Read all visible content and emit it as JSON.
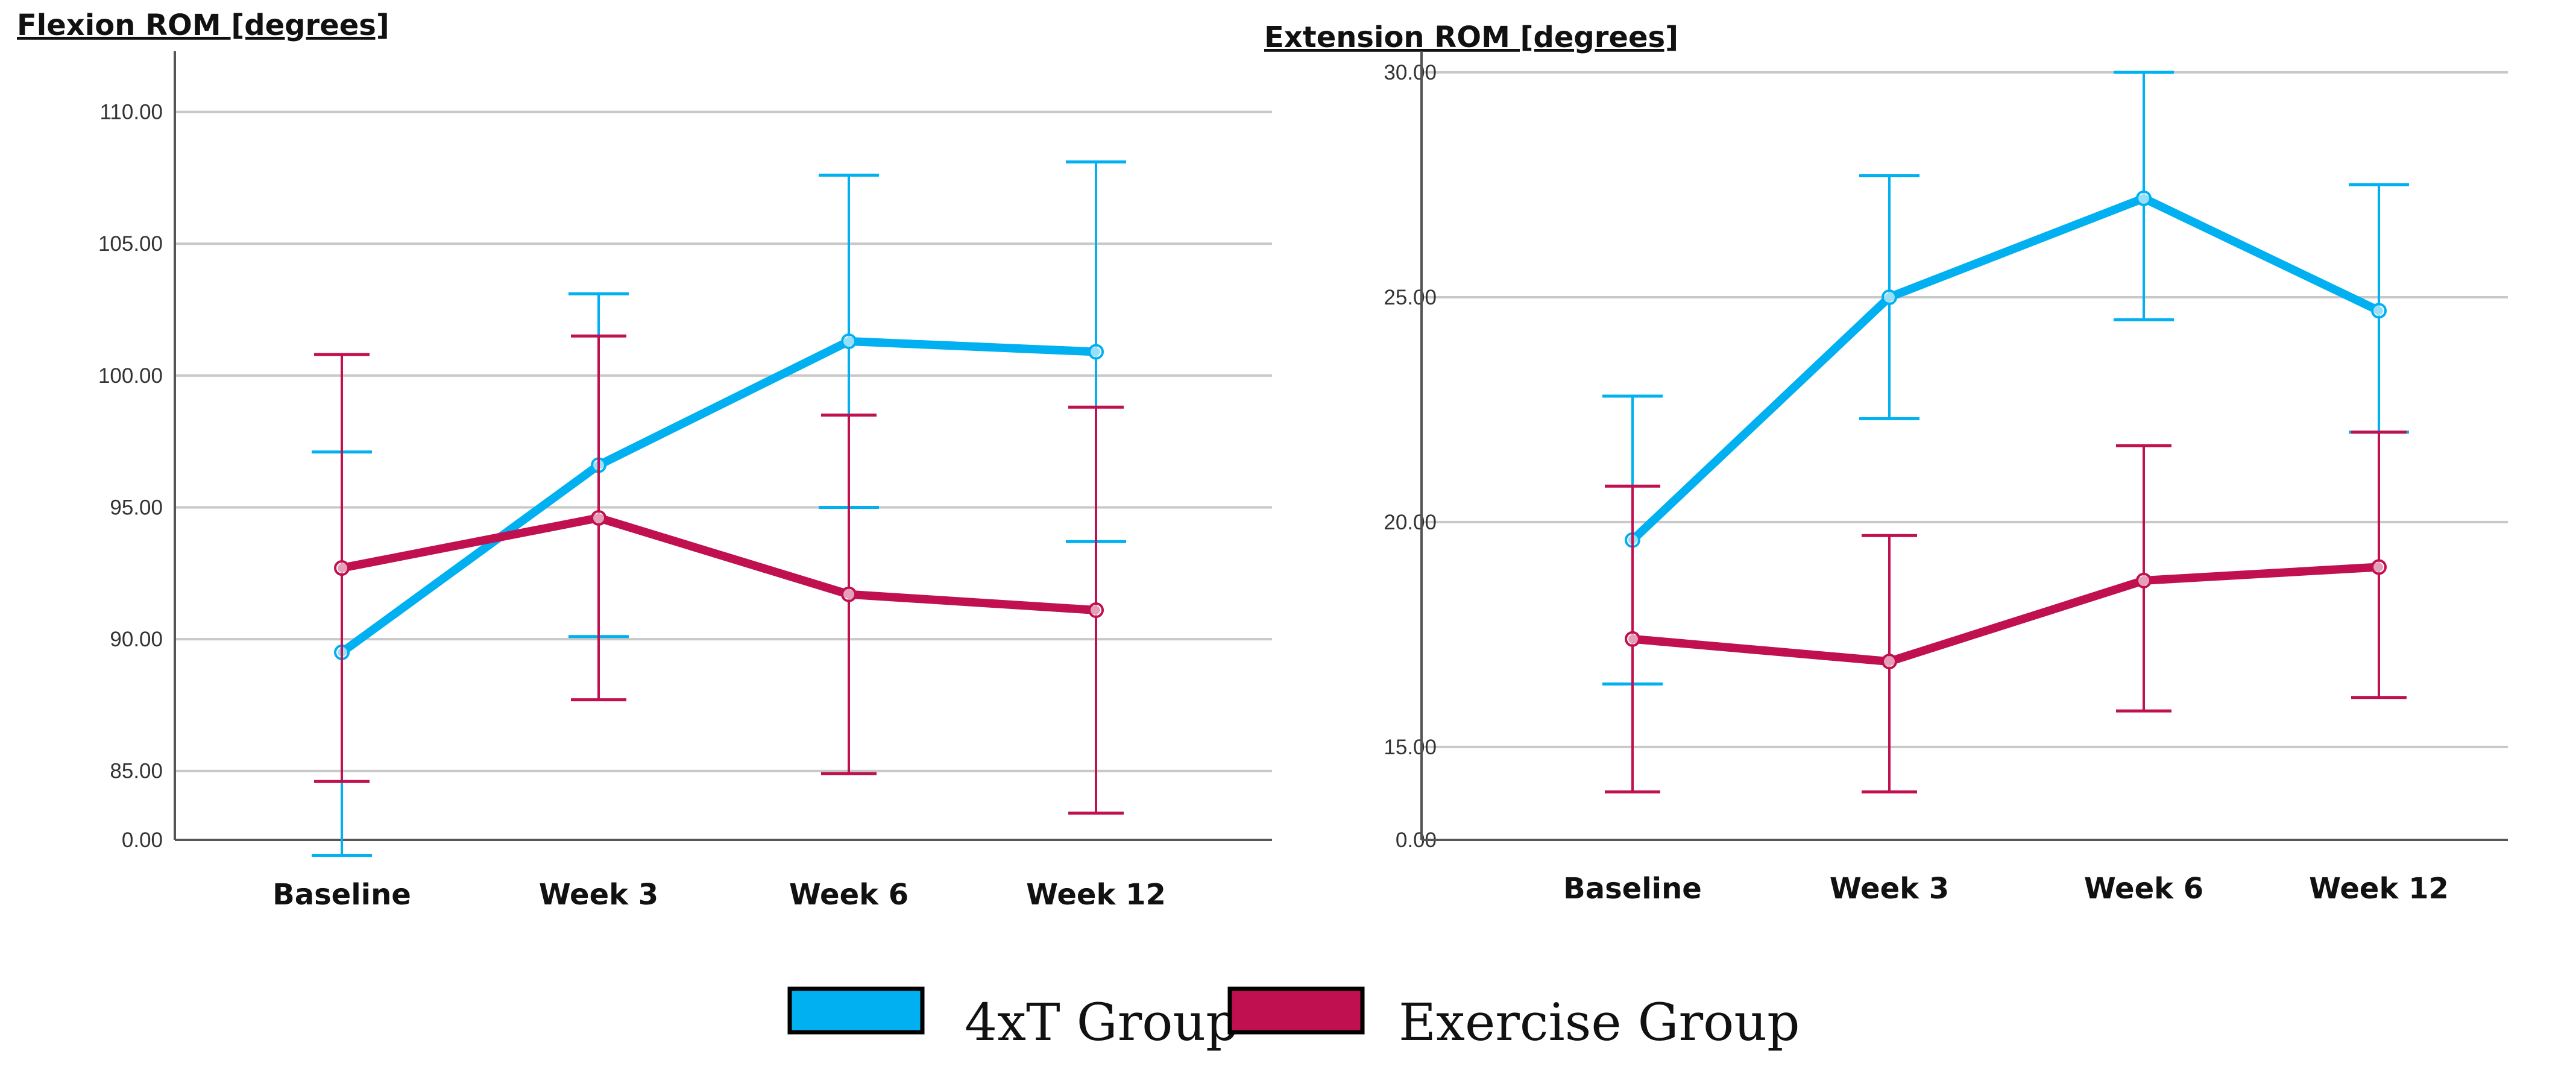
{
  "chart_data": [
    {
      "type": "line",
      "title": "Flexion ROM [degrees]",
      "xlabel": "",
      "ylabel": "",
      "categories": [
        "Baseline",
        "Week 3",
        "Week 6",
        "Week 12"
      ],
      "yticks": [
        "110.00",
        "105.00",
        "100.00",
        "95.00",
        "90.00",
        "85.00"
      ],
      "ybase_label": "0.00",
      "ylim": [
        82.5,
        111.5
      ],
      "grid": true,
      "error_bars": true,
      "series": [
        {
          "name": "4xT Group",
          "color": "#00b0f0",
          "values": [
            89.5,
            96.6,
            101.3,
            100.9
          ],
          "lower": [
            81.8,
            90.1,
            95.0,
            93.7
          ],
          "upper": [
            97.1,
            103.1,
            107.6,
            108.1
          ]
        },
        {
          "name": "Exercise Group",
          "color": "#c0104f",
          "values": [
            92.7,
            94.6,
            91.7,
            91.1
          ],
          "lower": [
            84.6,
            87.7,
            84.9,
            83.4
          ],
          "upper": [
            100.8,
            101.5,
            98.5,
            98.8
          ]
        }
      ]
    },
    {
      "type": "line",
      "title": "Extension ROM [degrees]",
      "xlabel": "",
      "ylabel": "",
      "categories": [
        "Baseline",
        "Week 3",
        "Week 6",
        "Week 12"
      ],
      "yticks": [
        "30.00",
        "25.00",
        "20.00",
        "15.00"
      ],
      "ybase_label": "0.00",
      "ylim": [
        13.0,
        30.0
      ],
      "grid": true,
      "error_bars": true,
      "series": [
        {
          "name": "4xT Group",
          "color": "#00b0f0",
          "values": [
            19.6,
            25.0,
            27.2,
            24.7
          ],
          "lower": [
            16.4,
            22.3,
            24.5,
            22.0
          ],
          "upper": [
            22.8,
            27.7,
            30.0,
            27.5
          ]
        },
        {
          "name": "Exercise Group",
          "color": "#c0104f",
          "values": [
            17.4,
            16.9,
            18.7,
            19.0
          ],
          "lower": [
            14.0,
            14.0,
            15.8,
            16.1
          ],
          "upper": [
            20.8,
            19.7,
            21.7,
            22.0
          ]
        }
      ]
    }
  ],
  "legend": [
    {
      "label": "4xT Group",
      "color": "#00b0f0"
    },
    {
      "label": "Exercise Group",
      "color": "#c0104f"
    }
  ]
}
